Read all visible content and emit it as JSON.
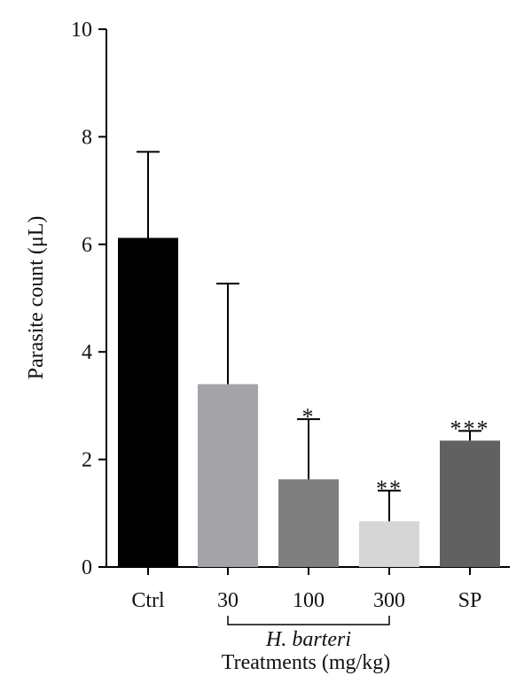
{
  "chart_data": {
    "type": "bar",
    "categories": [
      "Ctrl",
      "30",
      "100",
      "300",
      "SP"
    ],
    "values": [
      6.12,
      3.4,
      1.63,
      0.85,
      2.35
    ],
    "errors": [
      1.6,
      1.87,
      1.12,
      0.57,
      0.18
    ],
    "bar_colors": [
      "#000000",
      "#a3a3a8",
      "#7f7f7f",
      "#d6d6d6",
      "#616161"
    ],
    "significance": [
      "",
      "",
      "*",
      "**",
      "***"
    ],
    "ylabel": "Parasite count (μL)",
    "xlabel": "Treatments (mg/kg)",
    "group_label": "H. barteri",
    "group_span": [
      "30",
      "300"
    ],
    "ylim": [
      0,
      10
    ],
    "yticks": [
      0,
      2,
      4,
      6,
      8,
      10
    ],
    "grid": false
  }
}
